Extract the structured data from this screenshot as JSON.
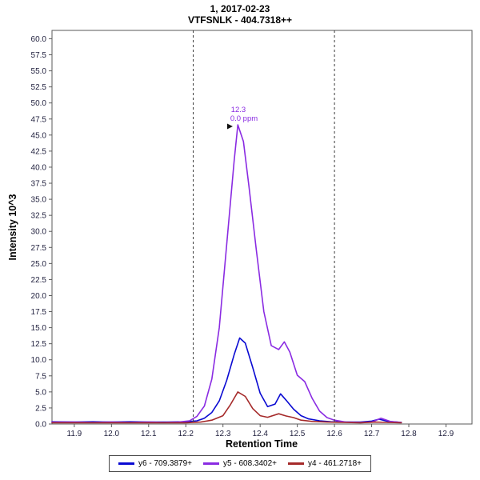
{
  "header": {
    "title_line1": "1, 2017-02-23",
    "title_line2": "VTFSNLK - 404.7318++"
  },
  "chart_data": {
    "type": "line",
    "title": "1, 2017-02-23",
    "subtitle": "VTFSNLK - 404.7318++",
    "xlabel": "Retention Time",
    "ylabel": "Intensity 10^3",
    "xlim": [
      11.84,
      12.97
    ],
    "ylim": [
      0,
      61.3
    ],
    "x_ticks": [
      11.9,
      12.0,
      12.1,
      12.2,
      12.3,
      12.4,
      12.5,
      12.6,
      12.7,
      12.8,
      12.9
    ],
    "y_ticks": [
      0,
      2.5,
      5,
      7.5,
      10,
      12.5,
      15,
      17.5,
      20,
      22.5,
      25,
      27.5,
      30,
      32.5,
      35,
      37.5,
      40,
      42.5,
      45,
      47.5,
      50,
      52.5,
      55,
      57.5,
      60
    ],
    "grid": false,
    "legend_position": "bottom",
    "integration_boundaries": [
      12.22,
      12.6
    ],
    "annotation": {
      "x": 12.335,
      "y": 46.6,
      "label": "12.3",
      "sublabel": "0.0 ppm",
      "color": "#8A2BE2"
    },
    "axis_color": "#5a5a5a",
    "tick_label_color": "#1f1f3d",
    "series": [
      {
        "name": "y6 - 709.3879+",
        "color": "#0A0AD2",
        "points": [
          [
            11.84,
            0.35
          ],
          [
            11.9,
            0.3
          ],
          [
            11.95,
            0.35
          ],
          [
            12.0,
            0.3
          ],
          [
            12.05,
            0.35
          ],
          [
            12.1,
            0.3
          ],
          [
            12.15,
            0.3
          ],
          [
            12.2,
            0.35
          ],
          [
            12.23,
            0.5
          ],
          [
            12.25,
            0.9
          ],
          [
            12.27,
            1.8
          ],
          [
            12.29,
            3.6
          ],
          [
            12.31,
            6.8
          ],
          [
            12.33,
            10.8
          ],
          [
            12.345,
            13.4
          ],
          [
            12.36,
            12.6
          ],
          [
            12.38,
            8.8
          ],
          [
            12.4,
            4.8
          ],
          [
            12.42,
            2.7
          ],
          [
            12.44,
            3.1
          ],
          [
            12.455,
            4.7
          ],
          [
            12.47,
            3.7
          ],
          [
            12.49,
            2.3
          ],
          [
            12.51,
            1.3
          ],
          [
            12.53,
            0.8
          ],
          [
            12.56,
            0.5
          ],
          [
            12.59,
            0.35
          ],
          [
            12.63,
            0.3
          ],
          [
            12.67,
            0.3
          ],
          [
            12.7,
            0.45
          ],
          [
            12.72,
            0.75
          ],
          [
            12.745,
            0.4
          ],
          [
            12.78,
            0.25
          ]
        ]
      },
      {
        "name": "y5 - 608.3402+",
        "color": "#8A2BE2",
        "points": [
          [
            11.84,
            0.3
          ],
          [
            11.9,
            0.3
          ],
          [
            11.95,
            0.25
          ],
          [
            12.0,
            0.3
          ],
          [
            12.05,
            0.25
          ],
          [
            12.1,
            0.3
          ],
          [
            12.14,
            0.25
          ],
          [
            12.18,
            0.3
          ],
          [
            12.21,
            0.5
          ],
          [
            12.23,
            1.2
          ],
          [
            12.25,
            2.8
          ],
          [
            12.27,
            7.0
          ],
          [
            12.29,
            15.0
          ],
          [
            12.31,
            28.0
          ],
          [
            12.33,
            41.0
          ],
          [
            12.34,
            46.6
          ],
          [
            12.355,
            44.0
          ],
          [
            12.37,
            37.0
          ],
          [
            12.39,
            27.0
          ],
          [
            12.41,
            17.5
          ],
          [
            12.43,
            12.2
          ],
          [
            12.45,
            11.6
          ],
          [
            12.465,
            12.8
          ],
          [
            12.48,
            11.2
          ],
          [
            12.5,
            7.6
          ],
          [
            12.52,
            6.6
          ],
          [
            12.54,
            4.0
          ],
          [
            12.56,
            2.0
          ],
          [
            12.58,
            1.0
          ],
          [
            12.6,
            0.6
          ],
          [
            12.63,
            0.3
          ],
          [
            12.67,
            0.25
          ],
          [
            12.7,
            0.3
          ],
          [
            12.725,
            0.9
          ],
          [
            12.75,
            0.4
          ],
          [
            12.78,
            0.25
          ]
        ]
      },
      {
        "name": "y4 - 461.2718+",
        "color": "#A52A2A",
        "points": [
          [
            11.84,
            0.2
          ],
          [
            11.9,
            0.2
          ],
          [
            11.95,
            0.2
          ],
          [
            12.0,
            0.2
          ],
          [
            12.05,
            0.2
          ],
          [
            12.1,
            0.2
          ],
          [
            12.15,
            0.2
          ],
          [
            12.2,
            0.2
          ],
          [
            12.24,
            0.3
          ],
          [
            12.27,
            0.6
          ],
          [
            12.3,
            1.3
          ],
          [
            12.32,
            3.0
          ],
          [
            12.34,
            5.0
          ],
          [
            12.36,
            4.3
          ],
          [
            12.38,
            2.4
          ],
          [
            12.4,
            1.3
          ],
          [
            12.42,
            1.05
          ],
          [
            12.45,
            1.6
          ],
          [
            12.47,
            1.25
          ],
          [
            12.49,
            1.0
          ],
          [
            12.51,
            0.6
          ],
          [
            12.54,
            0.4
          ],
          [
            12.58,
            0.3
          ],
          [
            12.62,
            0.25
          ],
          [
            12.67,
            0.2
          ],
          [
            12.71,
            0.3
          ],
          [
            12.74,
            0.25
          ],
          [
            12.78,
            0.2
          ]
        ]
      }
    ]
  },
  "legend": {
    "items": [
      "y6 - 709.3879+",
      "y5 - 608.3402+",
      "y4 - 461.2718+"
    ]
  }
}
